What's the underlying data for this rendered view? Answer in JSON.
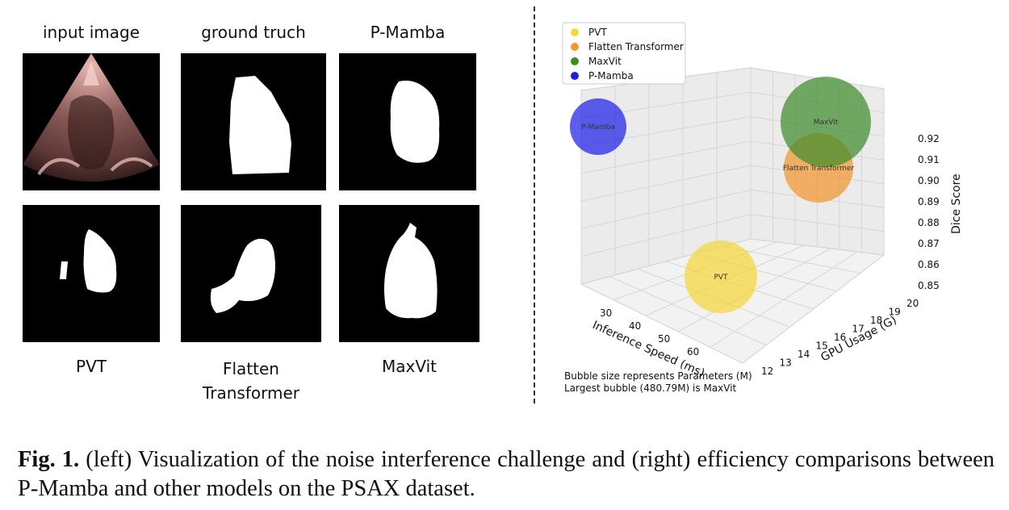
{
  "figure": {
    "tiles": [
      {
        "id": "input",
        "label": "input image"
      },
      {
        "id": "gt",
        "label": "ground truch"
      },
      {
        "id": "pmamba",
        "label": "P-Mamba"
      },
      {
        "id": "pvt",
        "label": "PVT"
      },
      {
        "id": "flatten",
        "label": "Flatten Transformer"
      },
      {
        "id": "maxvit",
        "label": "MaxVit"
      }
    ],
    "flatten_label_line1": "Flatten",
    "flatten_label_line2": "Transformer"
  },
  "chart_data": {
    "type": "scatter3d-bubble",
    "x_axis": {
      "label": "Inference Speed (ms)",
      "ticks": [
        30,
        40,
        50,
        60
      ]
    },
    "y_axis": {
      "label": "GPU Usage (G)",
      "ticks": [
        12,
        13,
        14,
        15,
        16,
        17,
        18,
        19,
        20
      ]
    },
    "z_axis": {
      "label": "Dice Score",
      "ticks": [
        0.85,
        0.86,
        0.87,
        0.88,
        0.89,
        0.9,
        0.91,
        0.92
      ]
    },
    "legend_position": "top-left",
    "series": [
      {
        "name": "PVT",
        "color": "#f2d63a",
        "bubble_label": "PVT"
      },
      {
        "name": "Flatten Transformer",
        "color": "#f0962e",
        "bubble_label": "Flatten Transformer"
      },
      {
        "name": "MaxVit",
        "color": "#3e8c2c",
        "bubble_label": "MaxVit"
      },
      {
        "name": "P-Mamba",
        "color": "#1f1fe8",
        "bubble_label": "P-Mamba"
      }
    ],
    "notes": [
      "Bubble size represents Parameters (M)",
      "Largest bubble (480.79M) is MaxVit"
    ]
  },
  "caption": {
    "label": "Fig. 1.",
    "text": " (left) Visualization of the noise interference challenge and (right) efficiency comparisons between P-Mamba and other models on the PSAX dataset."
  }
}
